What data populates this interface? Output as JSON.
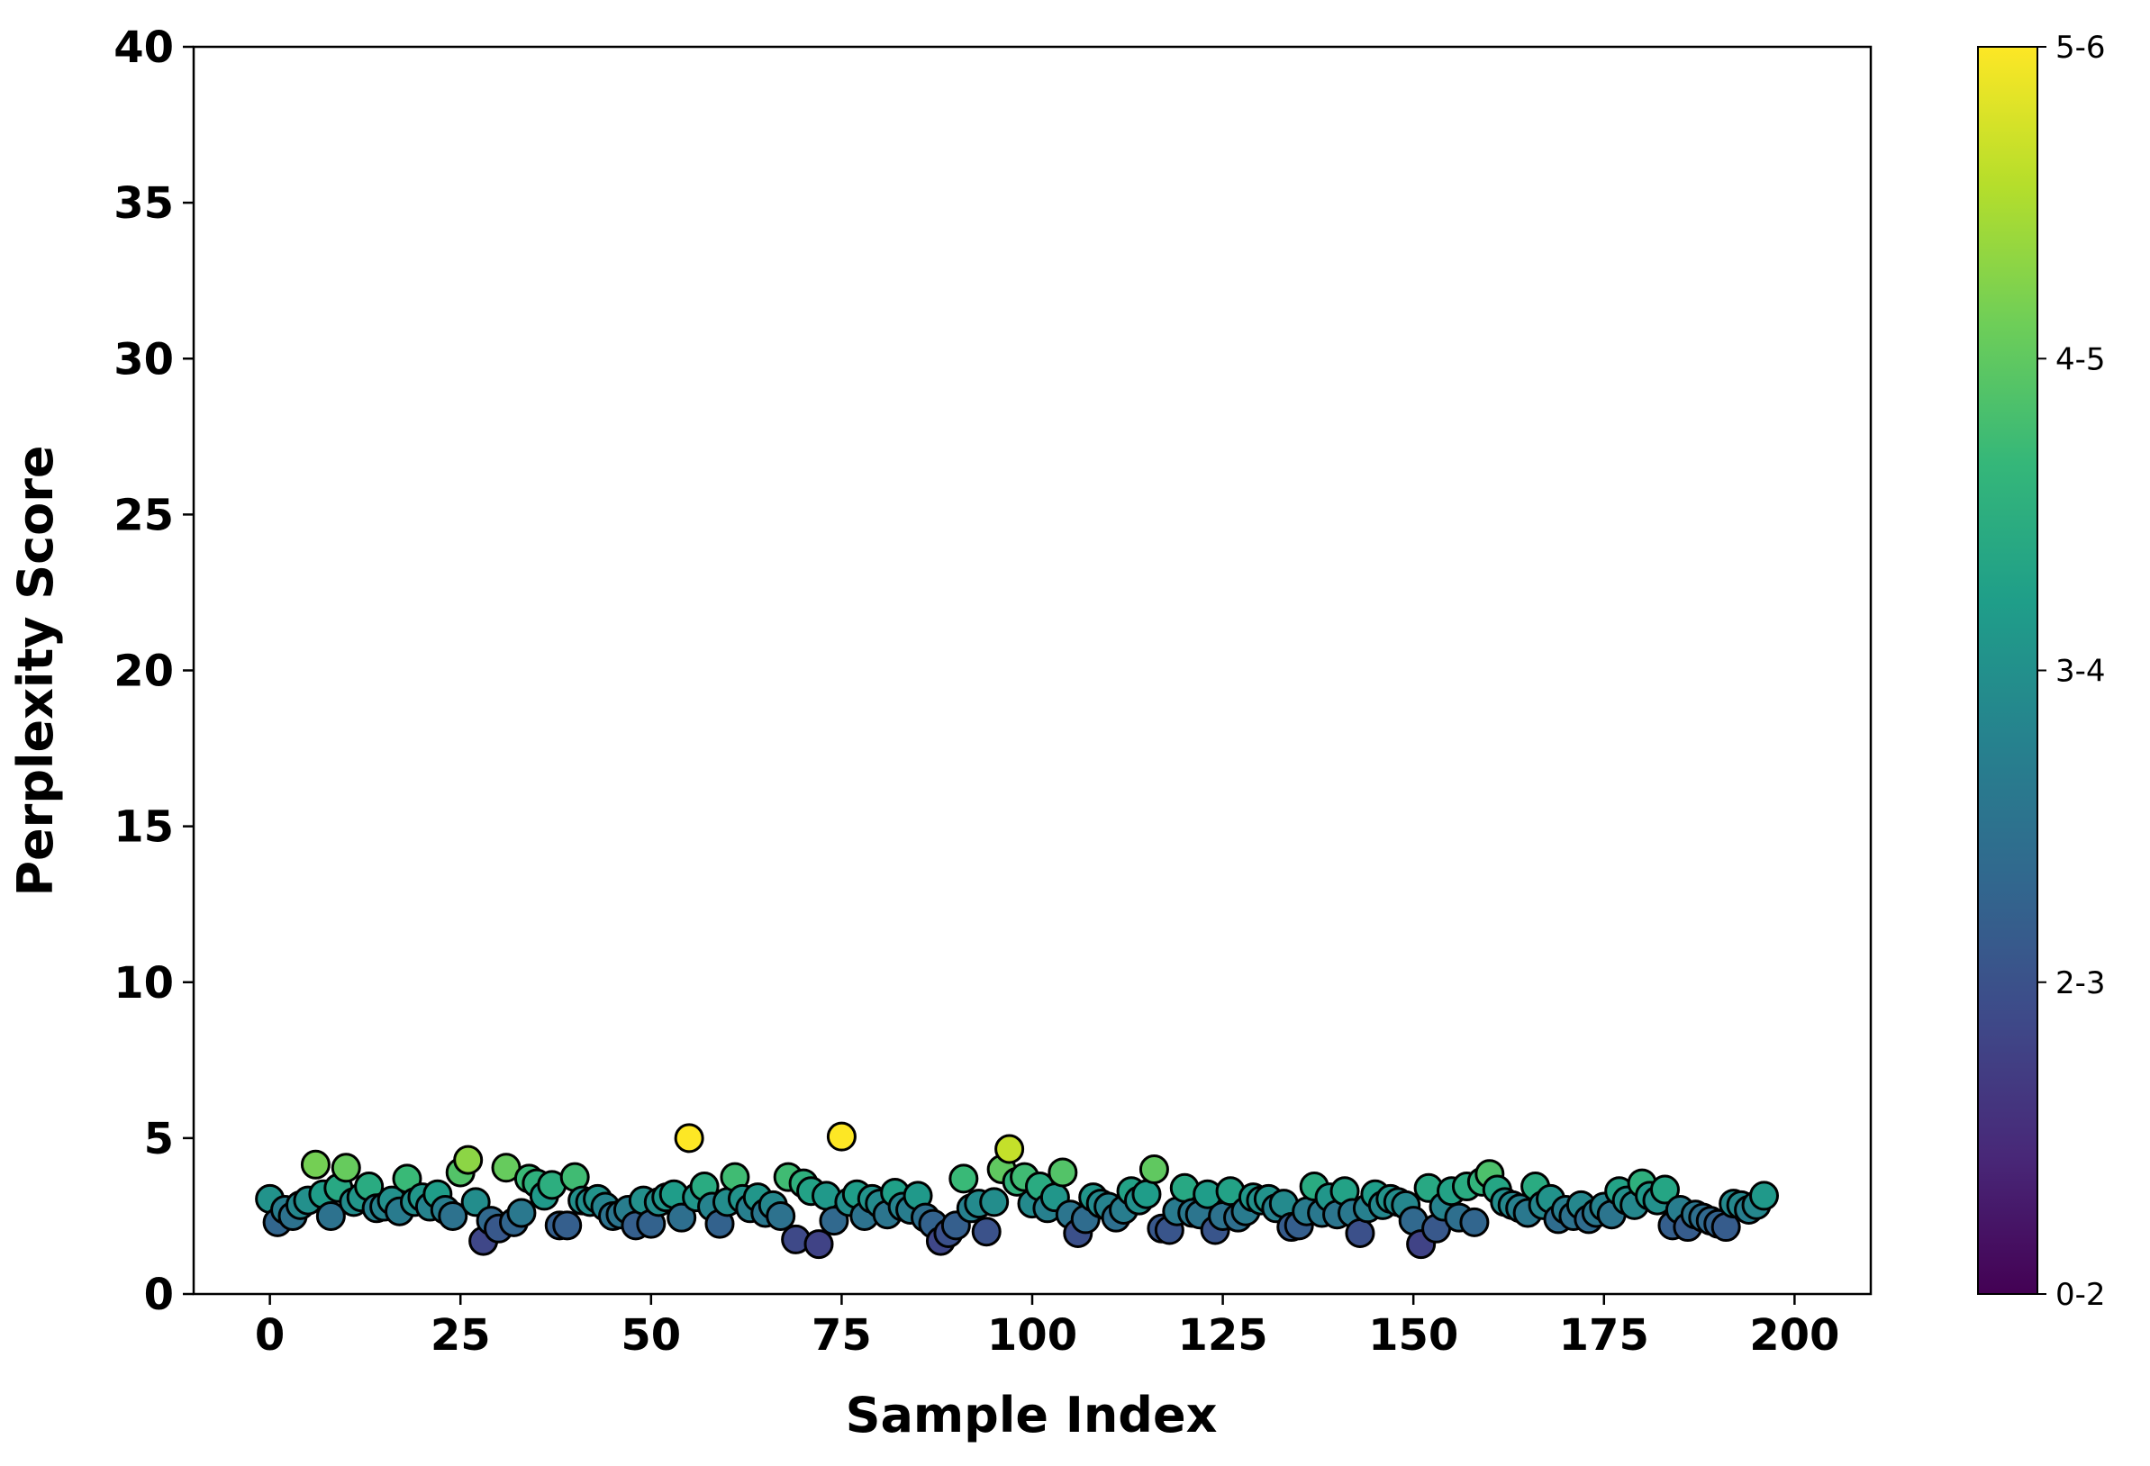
{
  "chart_data": {
    "type": "scatter",
    "xlabel": "Sample Index",
    "ylabel": "Perplexity Score",
    "xlim": [
      -10,
      210
    ],
    "ylim": [
      0,
      40
    ],
    "xticks": [
      0,
      25,
      50,
      75,
      100,
      125,
      150,
      175,
      200
    ],
    "yticks": [
      0,
      5,
      10,
      15,
      20,
      25,
      30,
      35,
      40
    ],
    "grid": false,
    "colormap": "viridis",
    "colorbar": {
      "ticks": [
        "0-2",
        "2-3",
        "3-4",
        "4-5",
        "5-6"
      ],
      "stops": [
        "#440154",
        "#482878",
        "#3e4a89",
        "#31688e",
        "#26828e",
        "#1f9e89",
        "#35b779",
        "#6ece58",
        "#b5de2b",
        "#fde725"
      ]
    },
    "y": [
      3.05,
      2.3,
      2.7,
      2.5,
      2.85,
      3.0,
      4.15,
      3.2,
      2.5,
      3.4,
      4.05,
      2.95,
      3.1,
      3.45,
      2.75,
      2.8,
      3.0,
      2.65,
      3.7,
      2.95,
      3.1,
      2.8,
      3.2,
      2.7,
      2.5,
      3.9,
      4.3,
      2.95,
      1.7,
      2.35,
      2.1,
      4.05,
      2.3,
      2.6,
      3.7,
      3.55,
      3.15,
      3.5,
      2.2,
      2.2,
      3.75,
      3.0,
      2.95,
      3.05,
      2.8,
      2.5,
      2.55,
      2.7,
      2.2,
      3.0,
      2.25,
      2.95,
      3.1,
      3.2,
      2.45,
      5.0,
      3.1,
      3.45,
      2.8,
      2.25,
      2.95,
      3.75,
      3.05,
      2.75,
      3.1,
      2.6,
      2.85,
      2.5,
      3.75,
      1.75,
      3.55,
      3.3,
      1.6,
      3.15,
      2.35,
      5.05,
      2.95,
      3.2,
      2.5,
      3.05,
      2.9,
      2.55,
      3.25,
      2.8,
      2.7,
      3.15,
      2.45,
      2.25,
      1.7,
      1.95,
      2.2,
      3.7,
      2.75,
      2.9,
      2.0,
      2.95,
      4.0,
      4.65,
      3.6,
      3.75,
      2.9,
      3.45,
      2.75,
      3.1,
      3.9,
      2.55,
      1.95,
      2.4,
      3.1,
      2.9,
      2.8,
      2.45,
      2.7,
      3.3,
      3.0,
      3.2,
      4.0,
      2.1,
      2.05,
      2.65,
      3.4,
      2.6,
      2.55,
      3.2,
      2.05,
      2.5,
      3.3,
      2.45,
      2.65,
      3.1,
      3.0,
      3.05,
      2.75,
      2.9,
      2.15,
      2.2,
      2.65,
      3.45,
      2.6,
      3.1,
      2.55,
      3.3,
      2.6,
      1.95,
      2.75,
      3.2,
      2.85,
      3.05,
      2.95,
      2.85,
      2.35,
      1.6,
      3.4,
      2.1,
      2.8,
      3.3,
      2.45,
      3.45,
      2.3,
      3.6,
      3.85,
      3.35,
      2.95,
      2.85,
      2.75,
      2.6,
      3.45,
      2.85,
      3.05,
      2.4,
      2.7,
      2.5,
      2.85,
      2.4,
      2.6,
      2.8,
      2.55,
      3.3,
      3.0,
      2.85,
      3.55,
      3.15,
      3.0,
      3.35,
      2.2,
      2.7,
      2.15,
      2.55,
      2.45,
      2.35,
      2.25,
      2.15,
      2.9,
      2.85,
      2.7,
      2.85,
      3.15
    ]
  }
}
